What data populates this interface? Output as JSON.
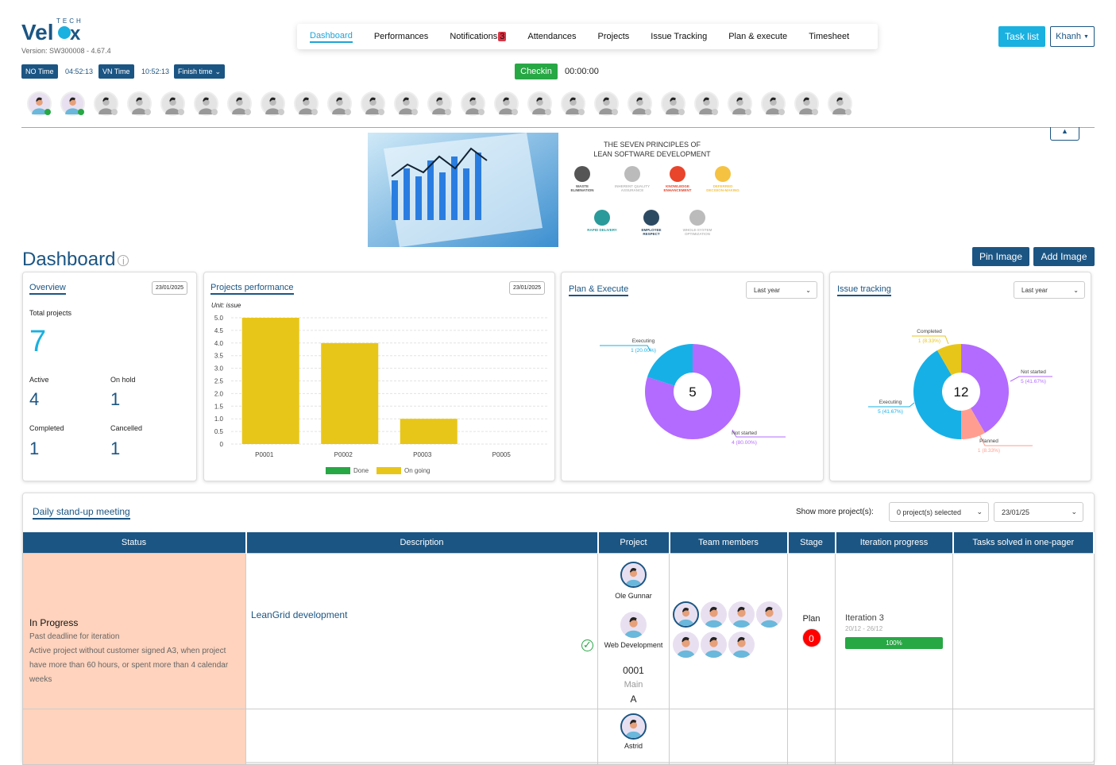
{
  "app": {
    "logo": "Velox TECH",
    "version": "Version: SW300008 - 4.67.4"
  },
  "nav": {
    "items": [
      "Dashboard",
      "Performances",
      "Notifications",
      "Attendances",
      "Projects",
      "Issue Tracking",
      "Plan & execute",
      "Timesheet"
    ],
    "notifications_badge": "3",
    "active": "Dashboard"
  },
  "header": {
    "task_list": "Task list",
    "user": "Khanh"
  },
  "times": {
    "no_label": "NO Time",
    "no_value": "04:52:13",
    "vn_label": "VN Time",
    "vn_value": "10:52:13",
    "finish": "Finish time",
    "checkin": "Checkin",
    "timer": "00:00:00"
  },
  "avatars": {
    "count": 25,
    "online": 2,
    "online_color": "#28a745"
  },
  "banner": {
    "title1": "THE SEVEN PRINCIPLES OF",
    "title2": "LEAN SOFTWARE DEVELOPMENT",
    "principles": [
      {
        "label": "WASTE ELIMINATION",
        "color": "#555555"
      },
      {
        "label": "INHERENT QUALITY ASSURANCE",
        "color": "#bbbbbb"
      },
      {
        "label": "KNOWLEDGE ENHANCEMENT",
        "color": "#e8452c"
      },
      {
        "label": "DEFERRED DECISION-MAKING",
        "color": "#f5c242"
      },
      {
        "label": "RAPID DELIVERY",
        "color": "#2a9a9a"
      },
      {
        "label": "EMPLOYEE RESPECT",
        "color": "#2d4a63"
      },
      {
        "label": "WHOLE-SYSTEM OPTIMIZATION",
        "color": "#bbbbbb"
      }
    ]
  },
  "dashboard": {
    "title": "Dashboard",
    "pin_image": "Pin Image",
    "add_image": "Add Image"
  },
  "overview": {
    "title": "Overview",
    "date": "23/01/2025",
    "total_label": "Total projects",
    "total": "7",
    "active_label": "Active",
    "active": "4",
    "onhold_label": "On hold",
    "onhold": "1",
    "completed_label": "Completed",
    "completed": "1",
    "cancelled_label": "Cancelled",
    "cancelled": "1"
  },
  "projects_perf": {
    "title": "Projects performance",
    "date": "23/01/2025",
    "unit": "Unit: issue"
  },
  "plan_execute": {
    "title": "Plan & Execute",
    "filter": "Last year"
  },
  "issue_tracking": {
    "title": "Issue tracking",
    "filter": "Last year"
  },
  "chart_data": [
    {
      "type": "bar",
      "categories": [
        "P0001",
        "P0002",
        "P0003",
        "P0005"
      ],
      "ylim": [
        0,
        5
      ],
      "yticks": [
        "0",
        "0.5",
        "1.0",
        "1.5",
        "2.0",
        "2.5",
        "3.0",
        "3.5",
        "4.0",
        "4.5",
        "5.0"
      ],
      "grid": true,
      "legend": "bottom",
      "series": [
        {
          "name": "Done",
          "color": "#28a745",
          "values": [
            0,
            0,
            0,
            0
          ]
        },
        {
          "name": "On going",
          "color": "#e8c619",
          "values": [
            5,
            4,
            1,
            0
          ]
        }
      ]
    },
    {
      "type": "pie",
      "total": "5",
      "slices": [
        {
          "label": "Not started",
          "value": 4,
          "text": "4 (80.00%)",
          "color": "#b36bff"
        },
        {
          "label": "Executing",
          "value": 1,
          "text": "1 (20.00%)",
          "color": "#17b0e6"
        }
      ]
    },
    {
      "type": "pie",
      "total": "12",
      "slices": [
        {
          "label": "Not started",
          "value": 5,
          "text": "5 (41.67%)",
          "color": "#b36bff"
        },
        {
          "label": "Planned",
          "value": 1,
          "text": "1 (8.33%)",
          "color": "#ff9e90"
        },
        {
          "label": "Executing",
          "value": 5,
          "text": "5 (41.67%)",
          "color": "#17b0e6"
        },
        {
          "label": "Completed",
          "value": 1,
          "text": "1 (8.33%)",
          "color": "#e8c619"
        }
      ]
    }
  ],
  "standup": {
    "title": "Daily stand-up meeting",
    "show_more": "Show more project(s):",
    "projects_select": "0 project(s) selected",
    "date": "23/01/25",
    "columns": [
      "Status",
      "Description",
      "Project",
      "Team members",
      "Stage",
      "Iteration progress",
      "Tasks solved in one-pager"
    ],
    "rows": [
      {
        "status": "In Progress",
        "notes": [
          "Past deadline for iteration",
          "Active project without customer signed A3, when project have more than 60 hours, or spent more than 4 calendar weeks"
        ],
        "description": "LeanGrid development",
        "owner": "Ole Gunnar",
        "project_name": "Web Development",
        "project_code": "0001",
        "project_type": "Main",
        "project_class": "A",
        "team_count": 7,
        "stage": "Plan",
        "stage_count": "0",
        "iteration": "Iteration 3",
        "iteration_dates": "20/12 - 26/12",
        "progress": 100,
        "progress_label": "100%"
      },
      {
        "owner": "Astrid"
      }
    ]
  }
}
